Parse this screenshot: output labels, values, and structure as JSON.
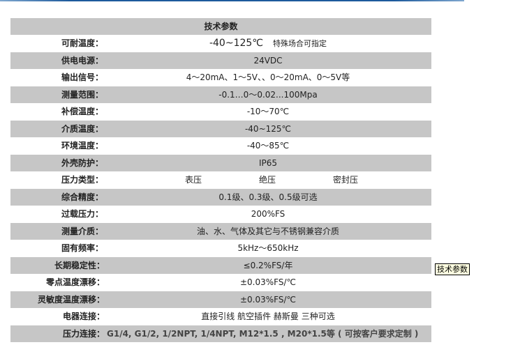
{
  "header": "技术参数",
  "rows": [
    {
      "label": "可耐温度：",
      "value": "-40~125℃",
      "note": "特殊场合可指定"
    },
    {
      "label": "供电电源：",
      "value": "24VDC"
    },
    {
      "label": "输出信号：",
      "value": "4～20mA、1～5V、、0～20mA、0～5V等"
    },
    {
      "label": "测量范围：",
      "value": "-0.1…0～0.02...100Mpa"
    },
    {
      "label": "补偿温度：",
      "value": "-10～70℃"
    },
    {
      "label": "介质温度：",
      "value": "-40~125℃"
    },
    {
      "label": "环境温度：",
      "value": "-40～85℃"
    },
    {
      "label": "外壳防护：",
      "value": "IP65"
    },
    {
      "label": "压力类型：",
      "types": [
        "表压",
        "绝压",
        "密封压"
      ]
    },
    {
      "label": "综合精度：",
      "value": "0.1级、0.3级、0.5级可选"
    },
    {
      "label": "过载压力：",
      "value": "200%FS"
    },
    {
      "label": "测量介质：",
      "value": "油、水、气体及其它与不锈钢兼容介质"
    },
    {
      "label": "固有频率：",
      "value": "5kHz～650kHz"
    },
    {
      "label": "长期稳定性：",
      "value": "≤0.2%FS/年"
    },
    {
      "label": "零点温度漂移：",
      "value": "±0.03%FS/℃"
    },
    {
      "label": "灵敏度温度漂移：",
      "value": "±0.03%FS/℃"
    },
    {
      "label": "电器连接：",
      "value": "直接引线 航空插件 赫斯曼 三种可选"
    },
    {
      "label": "压力连接：",
      "value": "G1/4, G1/2, 1/2NPT, 1/4NPT, M12*1.5 , M20*1.5等 ( 可按客户要求定制 )"
    }
  ],
  "tooltip": "技术参数"
}
